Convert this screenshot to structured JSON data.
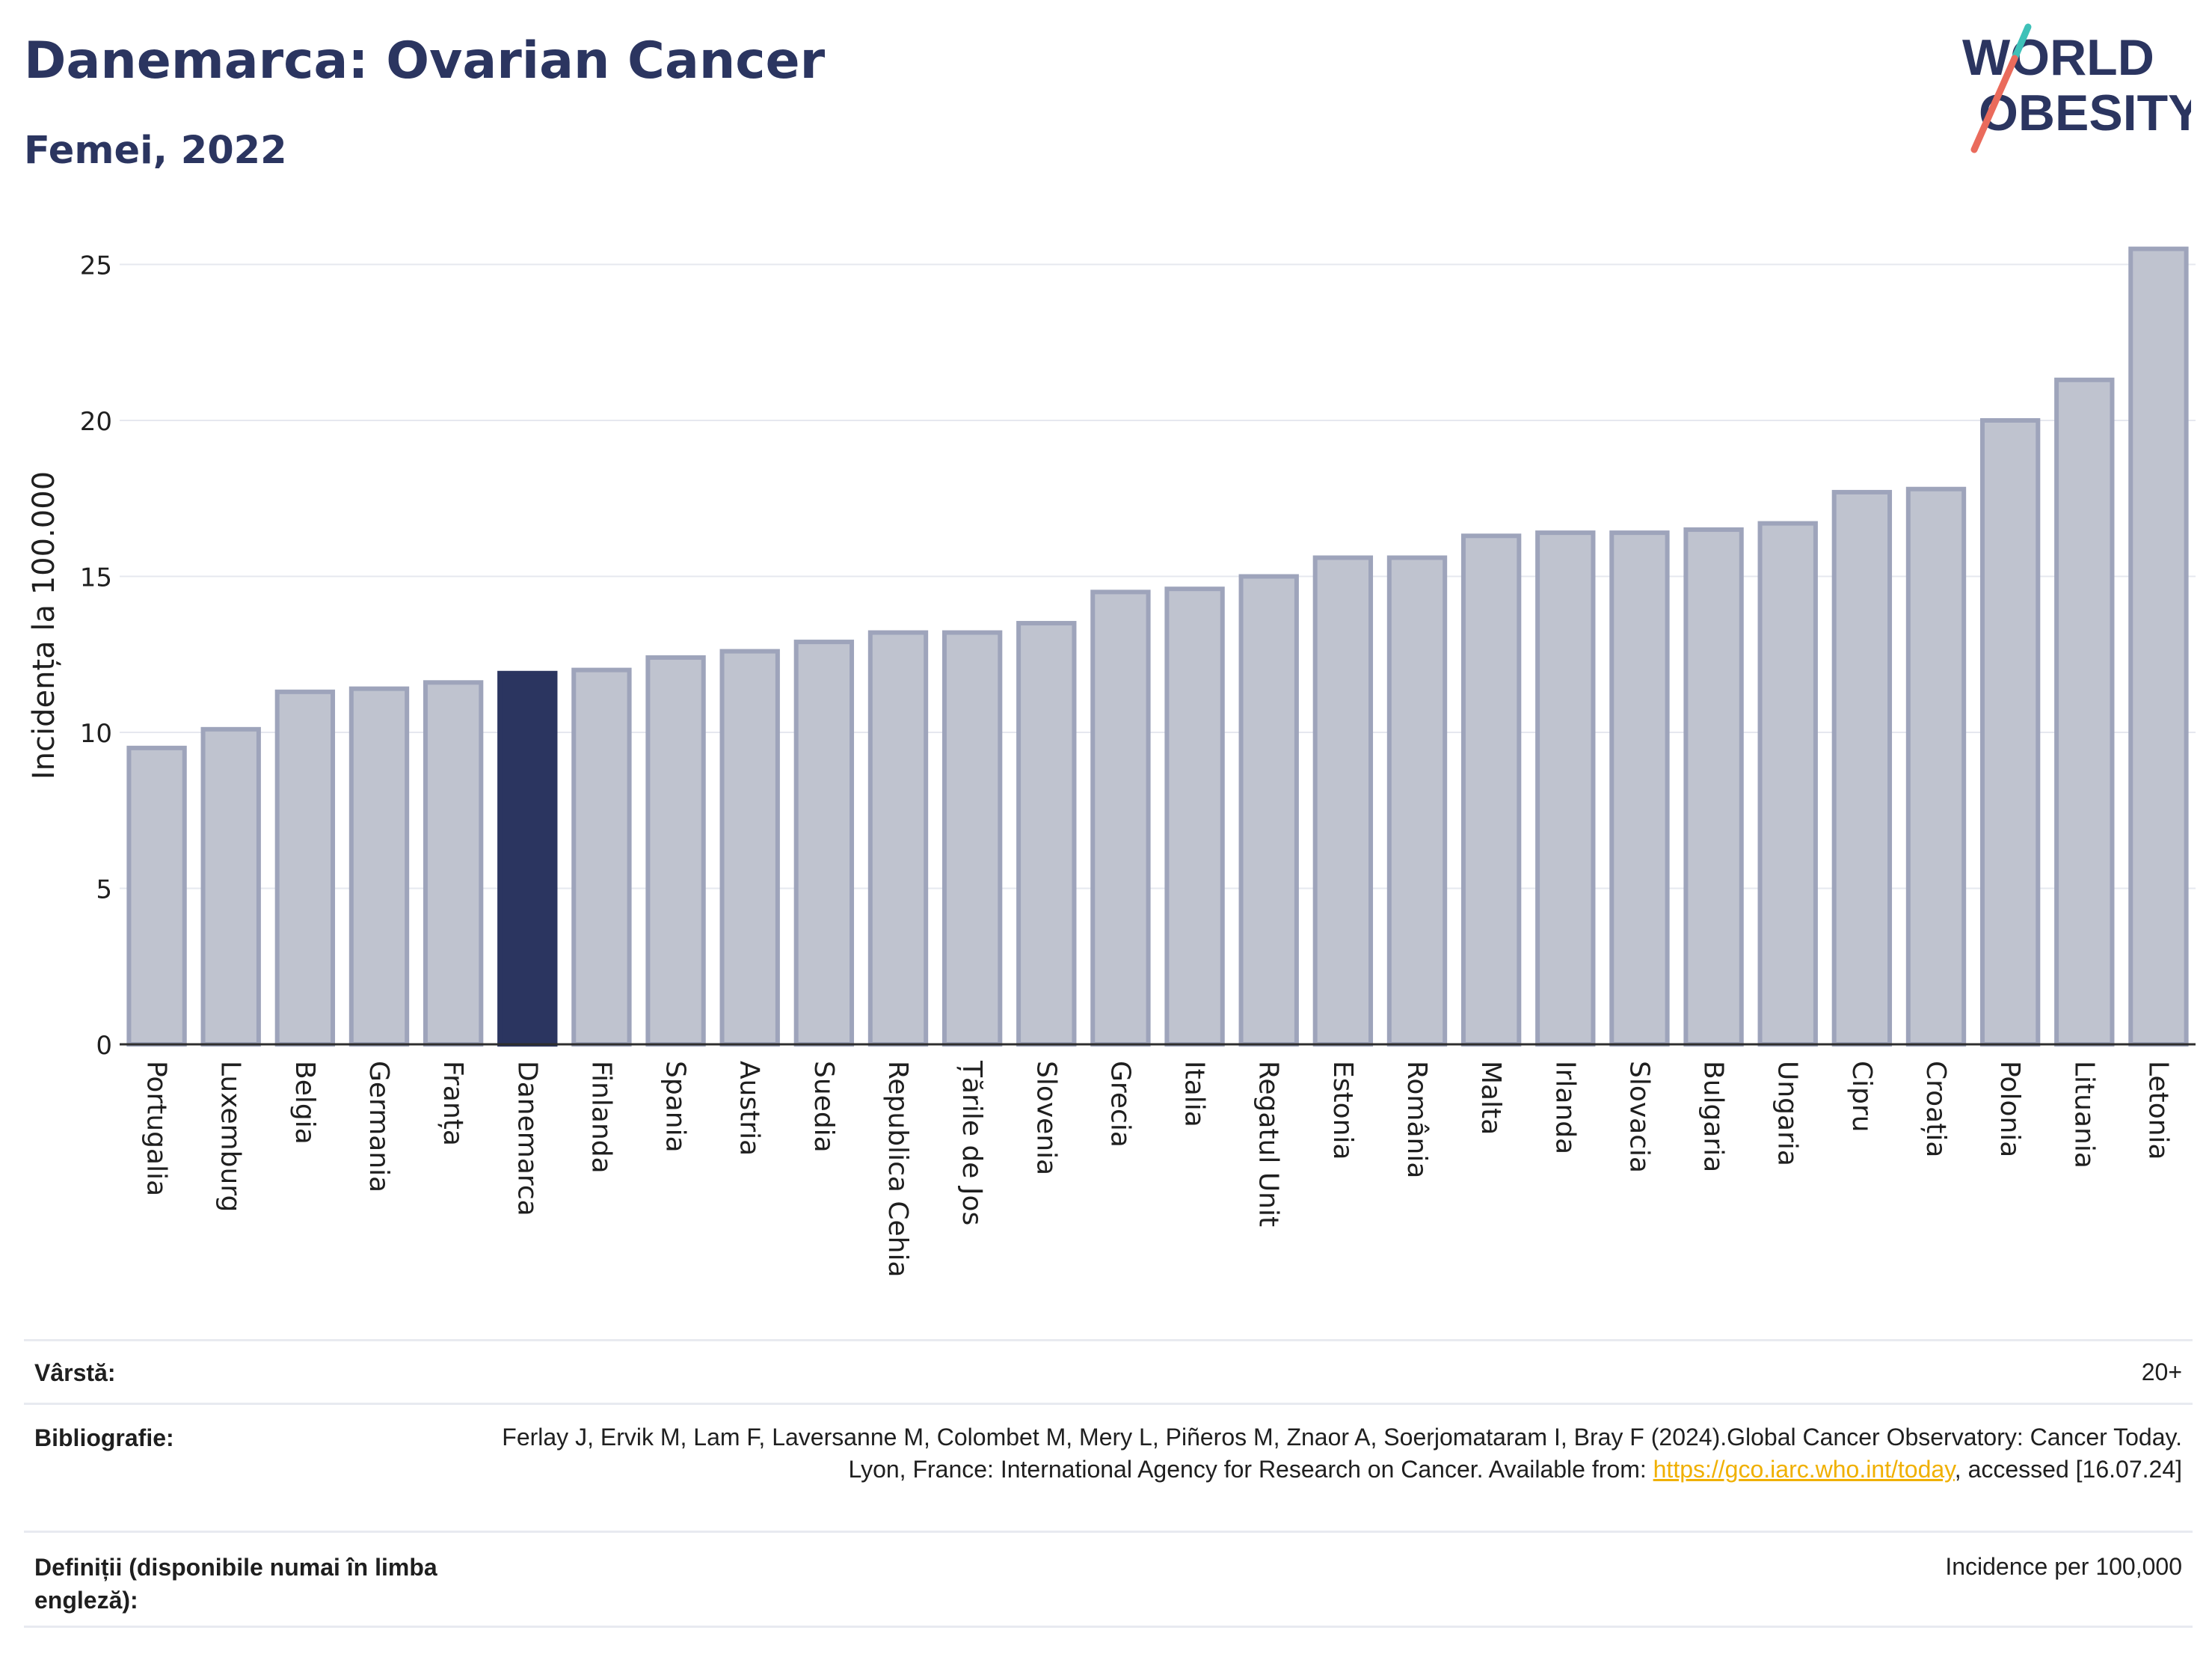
{
  "title": "Danemarca: Ovarian Cancer",
  "subtitle": "Femei, 2022",
  "logo": {
    "line1": "WORLD",
    "line2": "OBESITY",
    "slash_colors": [
      "#3ec1b8",
      "#ea6b5c"
    ]
  },
  "colors": {
    "highlight": "#2b3560",
    "bar_fill": "#bfc3cf",
    "bar_stroke": "#9ea4bb",
    "title": "#2b3560"
  },
  "chart_data": {
    "type": "bar",
    "ylabel": "Incidența la 100.000",
    "xlabel": "",
    "ylim": [
      0,
      26
    ],
    "yticks": [
      0,
      5,
      10,
      15,
      20,
      25
    ],
    "grid": true,
    "highlight": "Danemarca",
    "categories": [
      "Portugalia",
      "Luxemburg",
      "Belgia",
      "Germania",
      "Franța",
      "Danemarca",
      "Finlanda",
      "Spania",
      "Austria",
      "Suedia",
      "Republica Cehia",
      "Țările de Jos",
      "Slovenia",
      "Grecia",
      "Italia",
      "Regatul Unit",
      "Estonia",
      "România",
      "Malta",
      "Irlanda",
      "Slovacia",
      "Bulgaria",
      "Ungaria",
      "Cipru",
      "Croația",
      "Polonia",
      "Lituania",
      "Letonia"
    ],
    "values": [
      9.5,
      10.1,
      11.3,
      11.4,
      11.6,
      11.9,
      12.0,
      12.4,
      12.6,
      12.9,
      13.2,
      13.2,
      13.5,
      14.5,
      14.6,
      15.0,
      15.6,
      15.6,
      16.3,
      16.4,
      16.4,
      16.5,
      16.7,
      17.7,
      17.8,
      20.0,
      21.3,
      25.5
    ]
  },
  "meta": {
    "age_label": "Vârstă:",
    "age_value": "20+",
    "bib_label": "Bibliografie:",
    "bib_text_1": "Ferlay J, Ervik M, Lam F, Laversanne M, Colombet M, Mery L, Piñeros M, Znaor A, Soerjomataram I, Bray F (2024).Global Cancer Observatory: Cancer Today. Lyon, France: International Agency for Research on Cancer. Available from: ",
    "bib_link": "https://gco.iarc.who.int/today",
    "bib_text_2": ", accessed [16.07.24]",
    "def_label": "Definiții (disponibile numai în limba engleză):",
    "def_value": "Incidence per 100,000"
  }
}
